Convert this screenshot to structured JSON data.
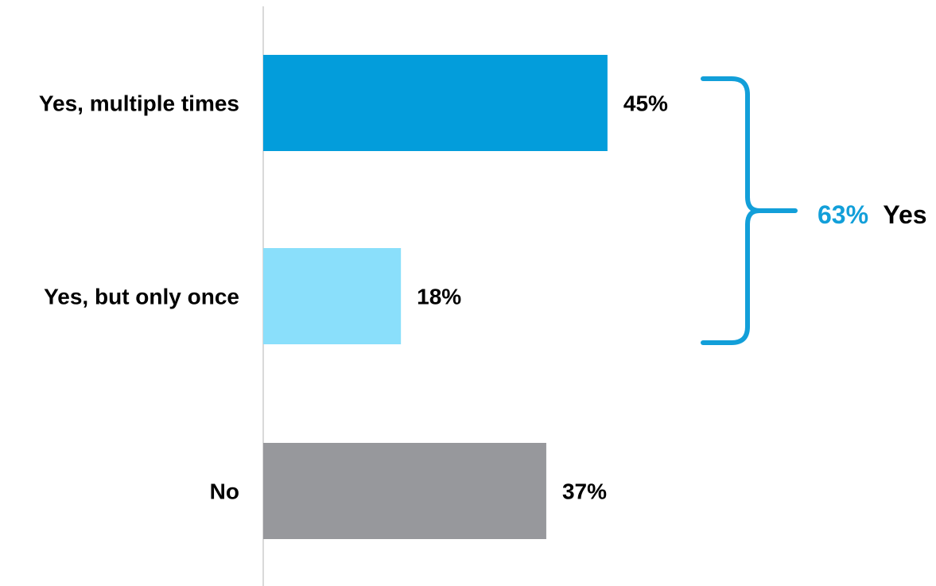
{
  "chart_data": {
    "type": "bar",
    "orientation": "horizontal",
    "categories": [
      "Yes, multiple times",
      "Yes, but only once",
      "No"
    ],
    "values": [
      45,
      18,
      37
    ],
    "value_labels": [
      "45%",
      "18%",
      "37%"
    ],
    "unit": "%",
    "colors": [
      "#039ddb",
      "#8adffb",
      "#97989c"
    ],
    "grid": false,
    "annotation": {
      "type": "bracket",
      "spans": [
        "Yes, multiple times",
        "Yes, but only once"
      ],
      "value_text": "63%",
      "label_text": "Yes",
      "value_color": "#129fd9",
      "label_color": "#000000",
      "bracket_color": "#129fd9"
    }
  }
}
